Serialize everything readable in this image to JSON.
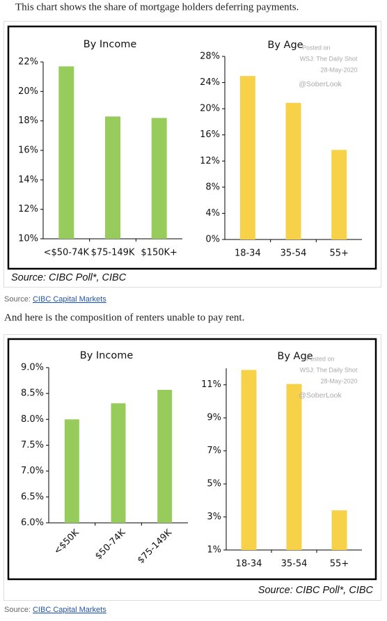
{
  "paragraphs": [
    "This chart shows the share of mortgage holders deferring payments.",
    "And here is the composition of renters unable to pay rent."
  ],
  "figures": [
    {
      "source": "Source: CIBC Poll*, CIBC"
    },
    {
      "source": "Source: CIBC Poll*, CIBC"
    }
  ],
  "credits": [
    {
      "label": "Source:",
      "link": "CIBC Capital Markets"
    },
    {
      "label": "Source:",
      "link": "CIBC Capital Markets"
    }
  ],
  "chart_data": [
    {
      "type": "bar",
      "title": "By Income",
      "categories": [
        "<$50-74K",
        "$75-149K",
        "$150K+"
      ],
      "values": [
        21.7,
        18.3,
        18.2
      ],
      "color": "#97cc5c",
      "ylim": [
        10,
        22
      ],
      "yticks": [
        {
          "value": 10,
          "label": "10%"
        },
        {
          "value": 12,
          "label": "12%"
        },
        {
          "value": 14,
          "label": "14%"
        },
        {
          "value": 16,
          "label": "16%"
        },
        {
          "value": 18,
          "label": "18%"
        },
        {
          "value": 20,
          "label": "20%"
        },
        {
          "value": 22,
          "label": "22%"
        }
      ]
    },
    {
      "type": "bar",
      "title": "By Age",
      "categories": [
        "18-34",
        "35-54",
        "55+"
      ],
      "values": [
        25.0,
        20.9,
        13.7
      ],
      "color": "#f7d148",
      "ylim": [
        0,
        28
      ],
      "yticks": [
        {
          "value": 0,
          "label": "0%"
        },
        {
          "value": 4,
          "label": "4%"
        },
        {
          "value": 8,
          "label": "8%"
        },
        {
          "value": 12,
          "label": "12%"
        },
        {
          "value": 16,
          "label": "16%"
        },
        {
          "value": 20,
          "label": "20%"
        },
        {
          "value": 24,
          "label": "24%"
        },
        {
          "value": 28,
          "label": "28%"
        }
      ],
      "annotations": [
        "Posted on",
        "WSJ: The Daily Shot",
        "28-May-2020",
        "@SoberLook"
      ]
    },
    {
      "type": "bar",
      "title": "By Income",
      "categories": [
        "<$50K",
        "$50-74K",
        "$75-149K"
      ],
      "values": [
        8.0,
        8.31,
        8.57
      ],
      "color": "#97cc5c",
      "ylim": [
        6,
        9
      ],
      "yticks": [
        {
          "value": 6,
          "label": "6.0%"
        },
        {
          "value": 6.5,
          "label": "6.5%"
        },
        {
          "value": 7,
          "label": "7.0%"
        },
        {
          "value": 7.5,
          "label": "7.5%"
        },
        {
          "value": 8,
          "label": "8.0%"
        },
        {
          "value": 8.5,
          "label": "8.5%"
        },
        {
          "value": 9,
          "label": "9.0%"
        }
      ]
    },
    {
      "type": "bar",
      "title": "By Age",
      "categories": [
        "18-34",
        "35-54",
        "55+"
      ],
      "values": [
        11.9,
        11.05,
        3.4
      ],
      "color": "#f7d148",
      "ylim": [
        1,
        12
      ],
      "yticks": [
        {
          "value": 1,
          "label": "1%"
        },
        {
          "value": 3,
          "label": "3%"
        },
        {
          "value": 5,
          "label": "5%"
        },
        {
          "value": 7,
          "label": "7%"
        },
        {
          "value": 9,
          "label": "9%"
        },
        {
          "value": 11,
          "label": "11%"
        }
      ],
      "annotations": [
        "Posted on",
        "WSJ: The Daily Shot",
        "28-May-2020",
        "@SoberLook"
      ]
    }
  ]
}
